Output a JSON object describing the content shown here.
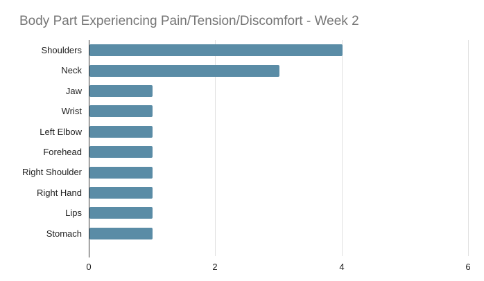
{
  "title": "Body Part Experiencing Pain/Tension/Discomfort - Week 2",
  "colors": {
    "bar": "#5a8ca6",
    "title": "#757575",
    "grid": "#e0e0e0",
    "axis": "#333333",
    "label": "#212121"
  },
  "chart_data": {
    "type": "bar",
    "orientation": "horizontal",
    "title": "Body Part Experiencing Pain/Tension/Discomfort - Week 2",
    "categories": [
      "Shoulders",
      "Neck",
      "Jaw",
      "Wrist",
      "Left Elbow",
      "Forehead",
      "Right Shoulder",
      "Right Hand",
      "Lips",
      "Stomach"
    ],
    "values": [
      4,
      3,
      1,
      1,
      1,
      1,
      1,
      1,
      1,
      1
    ],
    "xlabel": "",
    "ylabel": "",
    "xlim": [
      0,
      6
    ],
    "xticks": [
      0,
      2,
      4,
      6
    ],
    "grid": true,
    "legend": "none"
  }
}
